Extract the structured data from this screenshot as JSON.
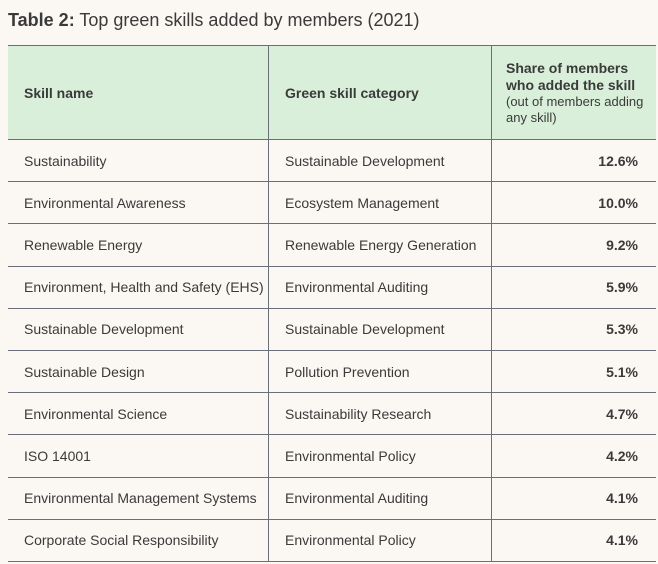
{
  "title": {
    "prefix": "Table 2:",
    "text": "Top green skills added by members (2021)"
  },
  "table": {
    "headers": {
      "skill": "Skill name",
      "category": "Green skill category",
      "share_main": "Share of members who added the skill",
      "share_sub": "(out of members adding any skill)"
    },
    "header_bg": "#d9efd9",
    "rows": [
      {
        "skill": "Sustainability",
        "category": "Sustainable Development",
        "share": "12.6%"
      },
      {
        "skill": "Environmental Awareness",
        "category": "Ecosystem Management",
        "share": "10.0%"
      },
      {
        "skill": "Renewable Energy",
        "category": "Renewable Energy Generation",
        "share": "9.2%"
      },
      {
        "skill": "Environment, Health and Safety (EHS)",
        "category": "Environmental Auditing",
        "share": "5.9%"
      },
      {
        "skill": "Sustainable Development",
        "category": "Sustainable Development",
        "share": "5.3%"
      },
      {
        "skill": "Sustainable Design",
        "category": "Pollution Prevention",
        "share": "5.1%"
      },
      {
        "skill": "Environmental Science",
        "category": "Sustainability Research",
        "share": "4.7%"
      },
      {
        "skill": "ISO 14001",
        "category": "Environmental Policy",
        "share": "4.2%"
      },
      {
        "skill": "Environmental Management Systems",
        "category": "Environmental Auditing",
        "share": "4.1%"
      },
      {
        "skill": "Corporate Social Responsibility",
        "category": "Environmental Policy",
        "share": "4.1%"
      }
    ]
  }
}
